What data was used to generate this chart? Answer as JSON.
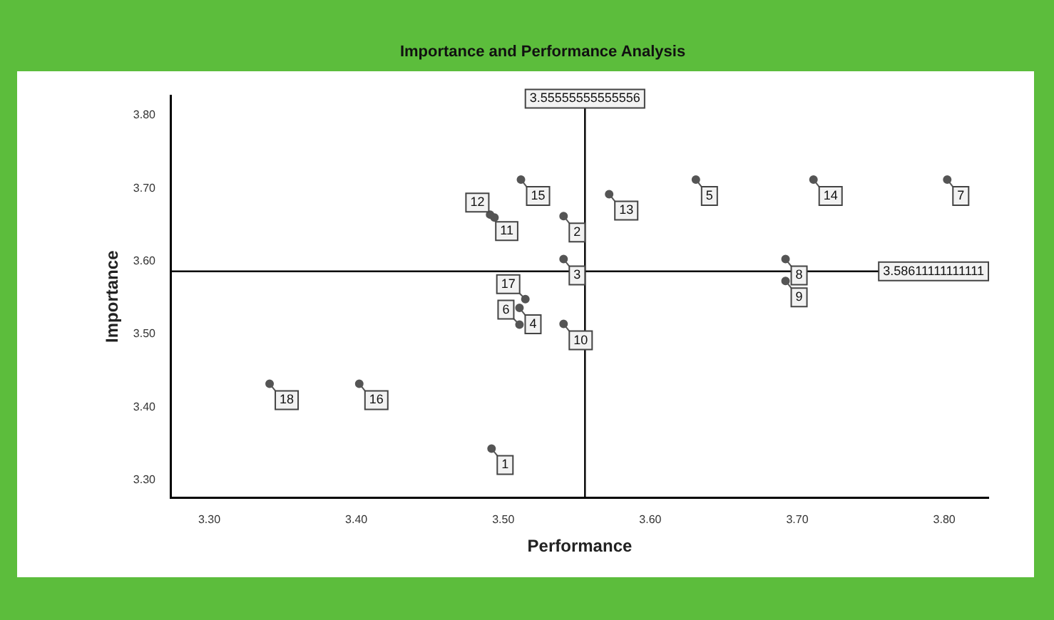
{
  "chart_data": {
    "type": "scatter",
    "title": "Importance and Performance Analysis",
    "xlabel": "Performance",
    "ylabel": "Importance",
    "series": [
      {
        "color": "#555555",
        "x": [
          3.492,
          3.541,
          3.541,
          3.511,
          3.631,
          3.511,
          3.802,
          3.692,
          3.692,
          3.541,
          3.491,
          3.494,
          3.572,
          3.711,
          3.512,
          3.402,
          3.515,
          3.341
        ],
        "values": [
          3.343,
          3.662,
          3.603,
          3.536,
          3.712,
          3.513,
          3.712,
          3.603,
          3.573,
          3.514,
          3.664,
          3.66,
          3.692,
          3.712,
          3.712,
          3.432,
          3.548,
          3.432
        ]
      }
    ],
    "marker": "circle",
    "legend": false,
    "grid": false,
    "xlim": [
      3.274,
      3.83
    ],
    "ylim": [
      3.276,
      3.827
    ],
    "xticks": [
      {
        "value": 3.3,
        "label": "3.30"
      },
      {
        "value": 3.4,
        "label": "3.40"
      },
      {
        "value": 3.5,
        "label": "3.50"
      },
      {
        "value": 3.6,
        "label": "3.60"
      },
      {
        "value": 3.7,
        "label": "3.70"
      },
      {
        "value": 3.8,
        "label": "3.80"
      }
    ],
    "yticks": [
      {
        "value": 3.3,
        "label": "3.30"
      },
      {
        "value": 3.4,
        "label": "3.40"
      },
      {
        "value": 3.5,
        "label": "3.50"
      },
      {
        "value": 3.6,
        "label": "3.60"
      },
      {
        "value": 3.7,
        "label": "3.70"
      },
      {
        "value": 3.8,
        "label": "3.80"
      }
    ],
    "ref_lines": [
      {
        "axis": "x",
        "value": 3.55555555555556,
        "label": "3.55555555555556",
        "color": "#000000"
      },
      {
        "axis": "y",
        "value": 3.58611111111111,
        "label": "3.58611111111111",
        "color": "#000000"
      }
    ],
    "annotations": [
      {
        "text": "1",
        "x": 3.492,
        "y": 3.343
      },
      {
        "text": "2",
        "x": 3.541,
        "y": 3.662
      },
      {
        "text": "3",
        "x": 3.541,
        "y": 3.603
      },
      {
        "text": "4",
        "x": 3.511,
        "y": 3.536
      },
      {
        "text": "5",
        "x": 3.631,
        "y": 3.712
      },
      {
        "text": "6",
        "x": 3.511,
        "y": 3.513
      },
      {
        "text": "7",
        "x": 3.802,
        "y": 3.712
      },
      {
        "text": "8",
        "x": 3.692,
        "y": 3.603
      },
      {
        "text": "9",
        "x": 3.692,
        "y": 3.573
      },
      {
        "text": "10",
        "x": 3.541,
        "y": 3.514
      },
      {
        "text": "11",
        "x": 3.491,
        "y": 3.664
      },
      {
        "text": "12",
        "x": 3.494,
        "y": 3.66
      },
      {
        "text": "13",
        "x": 3.572,
        "y": 3.692
      },
      {
        "text": "14",
        "x": 3.711,
        "y": 3.712
      },
      {
        "text": "15",
        "x": 3.512,
        "y": 3.712
      },
      {
        "text": "16",
        "x": 3.402,
        "y": 3.432
      },
      {
        "text": "17",
        "x": 3.515,
        "y": 3.548
      },
      {
        "text": "18",
        "x": 3.341,
        "y": 3.432
      }
    ]
  }
}
